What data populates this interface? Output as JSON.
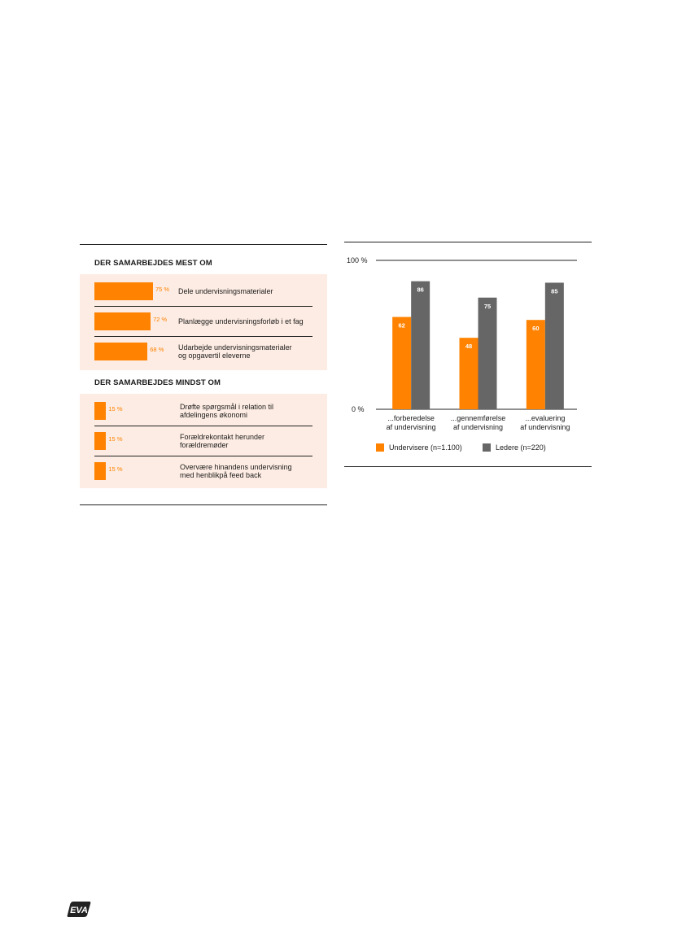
{
  "left_panel": {
    "most": {
      "title": "DER SAMARBEJDES MEST OM",
      "items": [
        {
          "value": 75,
          "pct_label": "75 %",
          "label": "Dele undervisningsmaterialer"
        },
        {
          "value": 72,
          "pct_label": "72 %",
          "label": "Planlægge undervisningsforløb i et fag"
        },
        {
          "value": 68,
          "pct_label": "68 %",
          "label": "Udarbejde undervisningsmaterialer\nog opgavertil eleverne"
        }
      ]
    },
    "least": {
      "title": "DER SAMARBEJDES MINDST OM",
      "items": [
        {
          "value": 15,
          "pct_label": "15 %",
          "label": "Drøfte spørgsmål i relation til\nafdelingens økonomi"
        },
        {
          "value": 15,
          "pct_label": "15 %",
          "label": "Forældrekontakt herunder\nforældremøder"
        },
        {
          "value": 15,
          "pct_label": "15 %",
          "label": "Overvære hinandens undervisning\nmed henblikpå feed back"
        }
      ]
    }
  },
  "chart_data": {
    "type": "bar",
    "categories": [
      "...forberedelse\naf undervisning",
      "...gennemførelse\naf undervisning",
      "...evaluering\naf undervisning"
    ],
    "series": [
      {
        "name": "Undervisere (n=1.100)",
        "values": [
          62,
          48,
          60
        ],
        "color": "#ff8200"
      },
      {
        "name": "Ledere (n=220)",
        "values": [
          86,
          75,
          85
        ],
        "color": "#666666"
      }
    ],
    "ylim": [
      0,
      100
    ],
    "yticks": [
      "0 %",
      "100 %"
    ],
    "legend": "bottom",
    "data_labels": true
  },
  "colors": {
    "accent": "#ff8200",
    "secondary": "#666666",
    "panel": "#fdece3"
  },
  "logo": {
    "text": "EVA"
  }
}
